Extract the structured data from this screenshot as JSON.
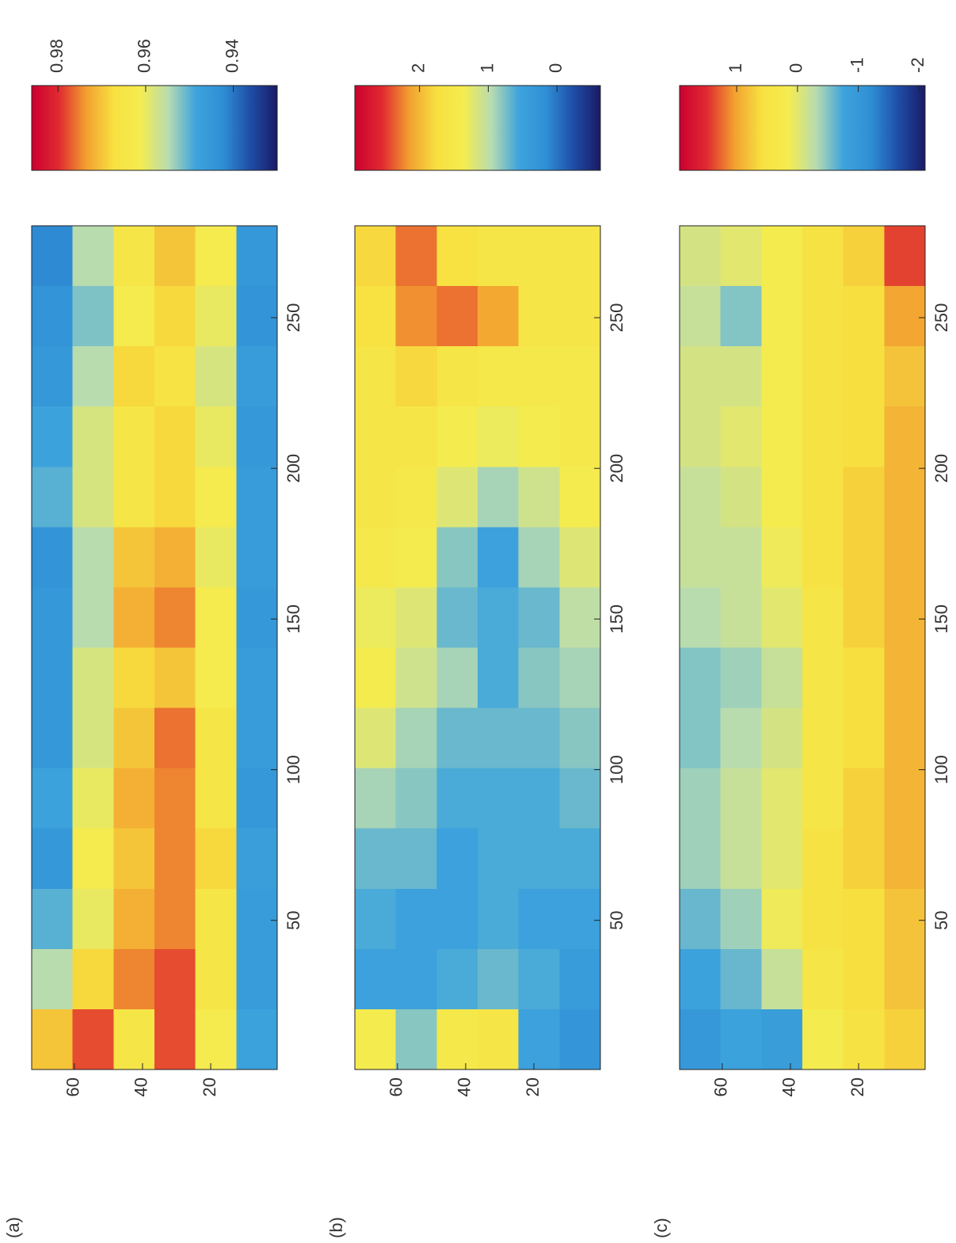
{
  "chart_data": [
    {
      "type": "heatmap",
      "label": "(a)",
      "x_bins": [
        0.5,
        20.5,
        40.5,
        60.5,
        80.5,
        100.5,
        120.5,
        140.5,
        160.5,
        180.5,
        200.5,
        220.5,
        240.5,
        260.5,
        280.5
      ],
      "y_bins": [
        72.5,
        60.5,
        48.5,
        36.5,
        24.5,
        12.5,
        0.5
      ],
      "z": [
        [
          0.97,
          0.955,
          0.95,
          0.945,
          0.948,
          0.945,
          0.945,
          0.945,
          0.944,
          0.95,
          0.948,
          0.945,
          0.944,
          0.942
        ],
        [
          0.978,
          0.968,
          0.96,
          0.962,
          0.96,
          0.958,
          0.958,
          0.955,
          0.955,
          0.958,
          0.958,
          0.955,
          0.952,
          0.955
        ],
        [
          0.965,
          0.975,
          0.972,
          0.97,
          0.972,
          0.97,
          0.968,
          0.972,
          0.97,
          0.965,
          0.965,
          0.968,
          0.962,
          0.965
        ],
        [
          0.978,
          0.978,
          0.975,
          0.975,
          0.975,
          0.976,
          0.97,
          0.975,
          0.972,
          0.968,
          0.968,
          0.966,
          0.968,
          0.97
        ],
        [
          0.962,
          0.965,
          0.965,
          0.968,
          0.965,
          0.965,
          0.962,
          0.962,
          0.96,
          0.962,
          0.96,
          0.958,
          0.96,
          0.962
        ],
        [
          0.948,
          0.946,
          0.946,
          0.947,
          0.945,
          0.946,
          0.946,
          0.945,
          0.946,
          0.946,
          0.945,
          0.946,
          0.944,
          0.945
        ]
      ],
      "xlim": [
        0.5,
        280.5
      ],
      "ylim": [
        0.5,
        72.5
      ],
      "xticks": [
        50,
        100,
        150,
        200,
        250
      ],
      "yticks": [
        20,
        40,
        60
      ],
      "clim": [
        0.93,
        0.986
      ],
      "cticks": [
        0.94,
        0.96,
        0.98
      ],
      "colormap": [
        "#1a1a66",
        "#1e4fa8",
        "#2f8fd5",
        "#3ea4dd",
        "#b8dcb0",
        "#f4ec50",
        "#f8e040",
        "#f2a030",
        "#e02a30",
        "#cc0030"
      ]
    },
    {
      "type": "heatmap",
      "label": "(b)",
      "x_bins": [
        0.5,
        20.5,
        40.5,
        60.5,
        80.5,
        100.5,
        120.5,
        140.5,
        160.5,
        180.5,
        200.5,
        220.5,
        240.5,
        260.5,
        280.5
      ],
      "y_bins": [
        72.5,
        60.5,
        48.5,
        36.5,
        24.5,
        12.5,
        0.5
      ],
      "z": [
        [
          1.4,
          0.5,
          0.6,
          0.7,
          0.9,
          1.2,
          1.4,
          1.3,
          1.5,
          1.6,
          1.6,
          1.6,
          1.7,
          1.8
        ],
        [
          0.8,
          0.5,
          0.5,
          0.7,
          0.8,
          0.9,
          1.1,
          1.2,
          1.4,
          1.5,
          1.6,
          1.8,
          2.2,
          2.3
        ],
        [
          1.5,
          0.6,
          0.5,
          0.5,
          0.6,
          0.7,
          0.9,
          0.7,
          0.8,
          1.2,
          1.4,
          1.6,
          2.3,
          1.7
        ],
        [
          1.6,
          0.7,
          0.6,
          0.6,
          0.6,
          0.7,
          0.6,
          0.6,
          0.5,
          0.9,
          1.3,
          1.5,
          2.1,
          1.6
        ],
        [
          0.5,
          0.6,
          0.5,
          0.6,
          0.6,
          0.7,
          0.8,
          0.7,
          0.9,
          1.1,
          1.4,
          1.5,
          1.6,
          1.6
        ],
        [
          0.3,
          0.4,
          0.5,
          0.6,
          0.7,
          0.8,
          0.9,
          1.0,
          1.2,
          1.4,
          1.5,
          1.5,
          1.6,
          1.6
        ]
      ],
      "xlim": [
        0.5,
        280.5
      ],
      "ylim": [
        0.5,
        72.5
      ],
      "xticks": [
        50,
        100,
        150,
        200,
        250
      ],
      "yticks": [
        20,
        40,
        60
      ],
      "clim": [
        -0.63,
        2.94
      ],
      "cticks": [
        0,
        1,
        2
      ],
      "colormap": [
        "#1a1a66",
        "#1e4fa8",
        "#2f8fd5",
        "#3ea4dd",
        "#b8dcb0",
        "#f4ec50",
        "#f8e040",
        "#f2a030",
        "#e02a30",
        "#cc0030"
      ]
    },
    {
      "type": "heatmap",
      "label": "(c)",
      "x_bins": [
        0.5,
        20.5,
        40.5,
        60.5,
        80.5,
        100.5,
        120.5,
        140.5,
        160.5,
        180.5,
        200.5,
        220.5,
        240.5,
        260.5,
        280.5
      ],
      "y_bins": [
        72.5,
        60.5,
        48.5,
        36.5,
        24.5,
        12.5,
        0.5
      ],
      "z": [
        [
          -1.0,
          -0.8,
          -0.6,
          -0.4,
          -0.4,
          -0.5,
          -0.5,
          -0.3,
          -0.2,
          -0.2,
          -0.1,
          -0.1,
          -0.2,
          -0.1
        ],
        [
          -0.8,
          -0.6,
          -0.4,
          -0.2,
          -0.2,
          -0.3,
          -0.4,
          -0.2,
          -0.2,
          -0.1,
          0.0,
          -0.1,
          -0.5,
          0.0
        ],
        [
          -0.9,
          -0.2,
          0.1,
          0.0,
          0.0,
          -0.1,
          -0.2,
          0.0,
          0.1,
          0.2,
          0.2,
          0.2,
          0.2,
          0.2
        ],
        [
          0.2,
          0.4,
          0.5,
          0.5,
          0.4,
          0.4,
          0.4,
          0.4,
          0.5,
          0.5,
          0.5,
          0.5,
          0.5,
          0.5
        ],
        [
          0.5,
          0.6,
          0.6,
          0.7,
          0.7,
          0.6,
          0.6,
          0.7,
          0.7,
          0.7,
          0.6,
          0.6,
          0.6,
          0.7
        ],
        [
          0.7,
          0.8,
          0.8,
          0.9,
          0.9,
          0.9,
          0.9,
          0.9,
          0.9,
          0.9,
          0.9,
          0.8,
          1.0,
          1.4
        ]
      ],
      "xlim": [
        0.5,
        280.5
      ],
      "ylim": [
        0.5,
        72.5
      ],
      "xticks": [
        50,
        100,
        150,
        200,
        250
      ],
      "yticks": [
        20,
        40,
        60
      ],
      "clim": [
        -2.1,
        1.94
      ],
      "cticks": [
        -2,
        -1,
        0,
        1
      ],
      "colormap": [
        "#1a1a66",
        "#1e4fa8",
        "#2f8fd5",
        "#3ea4dd",
        "#b8dcb0",
        "#f4ec50",
        "#f8e040",
        "#f2a030",
        "#e02a30",
        "#cc0030"
      ]
    }
  ]
}
